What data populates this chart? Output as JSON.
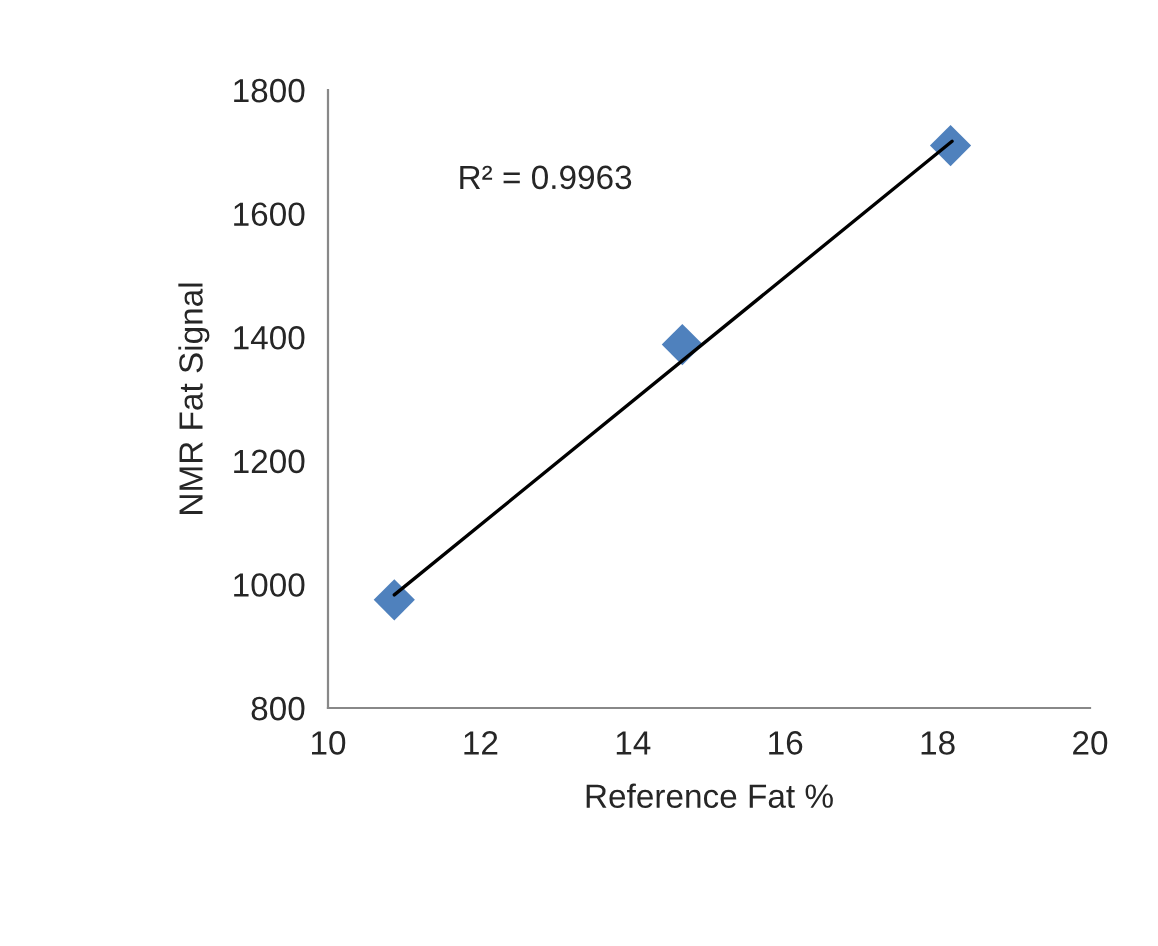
{
  "chart_data": {
    "type": "scatter",
    "xlabel": "Reference Fat %",
    "ylabel": "NMR Fat Signal",
    "series": [
      {
        "color": "#4f81bd",
        "marker": "diamond",
        "x": [
          10.87,
          14.65,
          18.17
        ],
        "values": [
          975,
          1388,
          1710
        ]
      },
      {
        "type": "line",
        "color": "#000000",
        "marker": "none",
        "line_style": "solid",
        "x": [
          10.87,
          18.19
        ],
        "values": [
          983,
          1717
        ]
      }
    ],
    "annotations": [
      "R² = 0.9963"
    ],
    "xlim": [
      10,
      20
    ],
    "xticks": [
      10,
      12,
      14,
      16,
      18,
      20
    ],
    "ylim": [
      800,
      1800
    ],
    "yticks": [
      800,
      1000,
      1200,
      1400,
      1600,
      1800
    ],
    "grid": false,
    "legend": false
  }
}
